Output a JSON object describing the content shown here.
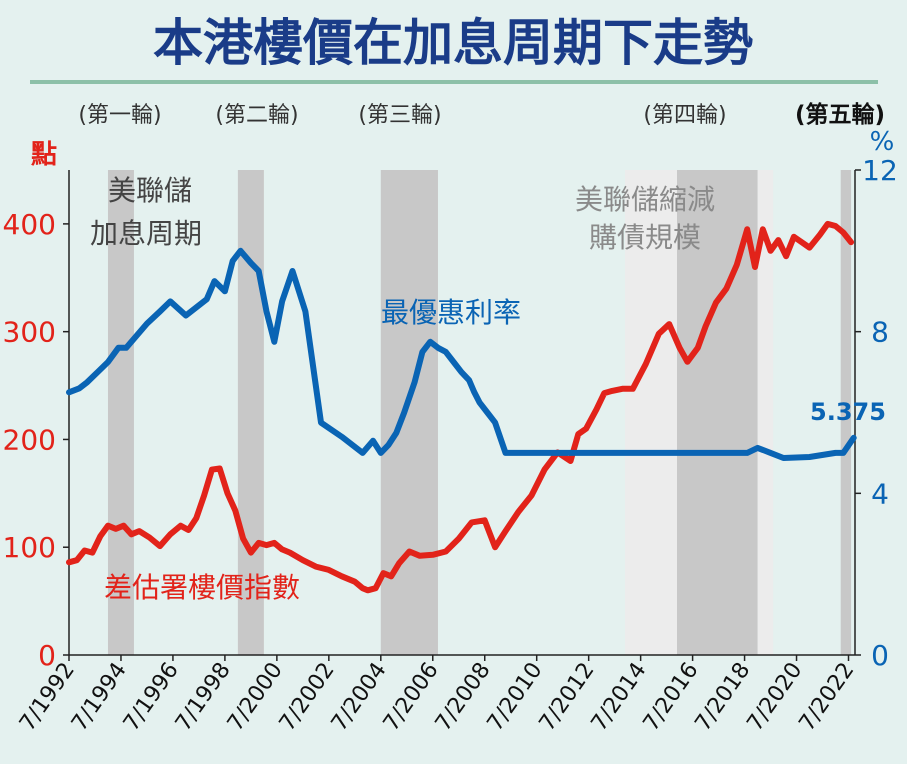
{
  "chart_data": {
    "type": "line",
    "title": "本港樓價在加息周期下走勢",
    "colors": {
      "title": "#1a3c88",
      "left_axis": "#e2231a",
      "right_axis": "#0a64b4",
      "red_series": "#e2231a",
      "blue_series": "#0a64b4",
      "hike_band": "#c8c8c8",
      "qt_band": "#ececec",
      "title_rule": "#8cc0a8"
    },
    "left_axis": {
      "unit": "點",
      "ylim": [
        0,
        450
      ],
      "ticks": [
        "0",
        "100",
        "200",
        "300",
        "400"
      ]
    },
    "right_axis": {
      "unit": "%",
      "ylim": [
        0,
        12
      ],
      "ticks": [
        "0",
        "4",
        "8",
        "12"
      ]
    },
    "xlim": [
      1992.5,
      2022.75
    ],
    "x_tick_labels": [
      "7/1992",
      "7/1994",
      "7/1996",
      "7/1998",
      "7/2000",
      "7/2002",
      "7/2004",
      "7/2006",
      "7/2008",
      "7/2010",
      "7/2012",
      "7/2014",
      "7/2016",
      "7/2018",
      "7/2020",
      "7/2022"
    ],
    "hike_cycles": [
      {
        "label": "(第一輪)",
        "start": 1994.0,
        "end": 1995.0,
        "bold": false
      },
      {
        "label": "(第二輪)",
        "start": 1999.0,
        "end": 2000.0,
        "bold": false
      },
      {
        "label": "(第三輪)",
        "start": 2004.5,
        "end": 2006.7,
        "bold": false
      },
      {
        "label": "(第四輪)",
        "start": 2015.9,
        "end": 2019.0,
        "bold": false
      },
      {
        "label": "(第五輪)",
        "start": 2022.2,
        "end": 2022.6,
        "bold": true
      }
    ],
    "qt_periods": [
      {
        "start": 2013.9,
        "end": 2015.9
      },
      {
        "start": 2019.0,
        "end": 2019.6
      }
    ],
    "series": [
      {
        "name": "差估署樓價指數",
        "axis": "left",
        "x": [
          1992.5,
          1992.8,
          1993.1,
          1993.4,
          1993.7,
          1994.0,
          1994.3,
          1994.6,
          1994.9,
          1995.2,
          1995.6,
          1996.0,
          1996.4,
          1996.8,
          1997.1,
          1997.4,
          1997.7,
          1998.0,
          1998.3,
          1998.6,
          1998.9,
          1999.2,
          1999.5,
          1999.8,
          2000.1,
          2000.4,
          2000.7,
          2001.0,
          2001.5,
          2002.0,
          2002.5,
          2003.0,
          2003.5,
          2003.8,
          2004.0,
          2004.3,
          2004.6,
          2004.9,
          2005.2,
          2005.6,
          2006.0,
          2006.5,
          2007.0,
          2007.5,
          2008.0,
          2008.5,
          2008.9,
          2009.3,
          2009.8,
          2010.3,
          2010.8,
          2011.3,
          2011.8,
          2012.1,
          2012.4,
          2012.8,
          2013.1,
          2013.4,
          2013.8,
          2014.2,
          2014.7,
          2015.2,
          2015.6,
          2016.0,
          2016.3,
          2016.7,
          2017.0,
          2017.4,
          2017.8,
          2018.2,
          2018.6,
          2018.9,
          2019.2,
          2019.5,
          2019.8,
          2020.1,
          2020.4,
          2020.7,
          2021.0,
          2021.4,
          2021.7,
          2022.0,
          2022.3,
          2022.6
        ],
        "values": [
          86,
          88,
          97,
          95,
          110,
          120,
          117,
          120,
          112,
          115,
          109,
          101,
          112,
          120,
          116,
          127,
          148,
          172,
          173,
          150,
          134,
          108,
          95,
          104,
          102,
          104,
          98,
          95,
          88,
          82,
          79,
          73,
          68,
          62,
          60,
          62,
          76,
          73,
          85,
          96,
          92,
          93,
          96,
          108,
          123,
          125,
          100,
          115,
          133,
          148,
          172,
          188,
          180,
          205,
          210,
          228,
          243,
          245,
          247,
          247,
          270,
          298,
          307,
          285,
          272,
          285,
          305,
          327,
          340,
          362,
          395,
          360,
          395,
          375,
          385,
          370,
          388,
          383,
          378,
          390,
          400,
          398,
          392,
          383
        ]
      },
      {
        "name": "最優惠利率",
        "axis": "right",
        "x": [
          1992.5,
          1992.9,
          1993.2,
          1993.6,
          1994.0,
          1994.4,
          1994.7,
          1995.1,
          1995.5,
          1996.0,
          1996.4,
          1997.0,
          1997.4,
          1997.8,
          1998.1,
          1998.5,
          1998.8,
          1999.1,
          1999.5,
          1999.8,
          2000.1,
          2000.4,
          2000.7,
          2001.1,
          2001.6,
          2002.2,
          2003.0,
          2003.8,
          2004.2,
          2004.5,
          2004.8,
          2005.1,
          2005.4,
          2005.8,
          2006.1,
          2006.4,
          2006.7,
          2007.0,
          2007.3,
          2007.6,
          2007.9,
          2008.1,
          2008.3,
          2008.6,
          2008.9,
          2009.3,
          2010.0,
          2012.0,
          2014.0,
          2016.0,
          2017.0,
          2018.0,
          2018.6,
          2019.0,
          2019.5,
          2020.0,
          2021.0,
          2022.0,
          2022.3,
          2022.7
        ],
        "values": [
          6.5,
          6.6,
          6.75,
          7.0,
          7.25,
          7.6,
          7.6,
          7.9,
          8.2,
          8.5,
          8.75,
          8.4,
          8.6,
          8.8,
          9.25,
          9.0,
          9.75,
          10.0,
          9.7,
          9.5,
          8.5,
          7.75,
          8.75,
          9.5,
          8.5,
          5.75,
          5.4,
          5.0,
          5.3,
          5.0,
          5.2,
          5.5,
          6.0,
          6.75,
          7.5,
          7.75,
          7.6,
          7.5,
          7.25,
          7.0,
          6.8,
          6.5,
          6.25,
          6.0,
          5.75,
          5.0,
          5.0,
          5.0,
          5.0,
          5.0,
          5.0,
          5.0,
          5.0,
          5.125,
          5.0,
          4.875,
          4.9,
          5.0,
          5.0,
          5.375
        ]
      }
    ],
    "annotations": [
      {
        "text": "美聯儲",
        "color": "#444444"
      },
      {
        "text": "加息周期",
        "color": "#444444"
      },
      {
        "text": "美聯儲縮減",
        "color": "#8a8a8a"
      },
      {
        "text": "購債規模",
        "color": "#8a8a8a"
      },
      {
        "text": "最優惠利率",
        "color": "#0a64b4"
      },
      {
        "text": "差估署樓價指數",
        "color": "#e2231a"
      },
      {
        "text": "5.375",
        "color": "#0a64b4"
      }
    ]
  }
}
